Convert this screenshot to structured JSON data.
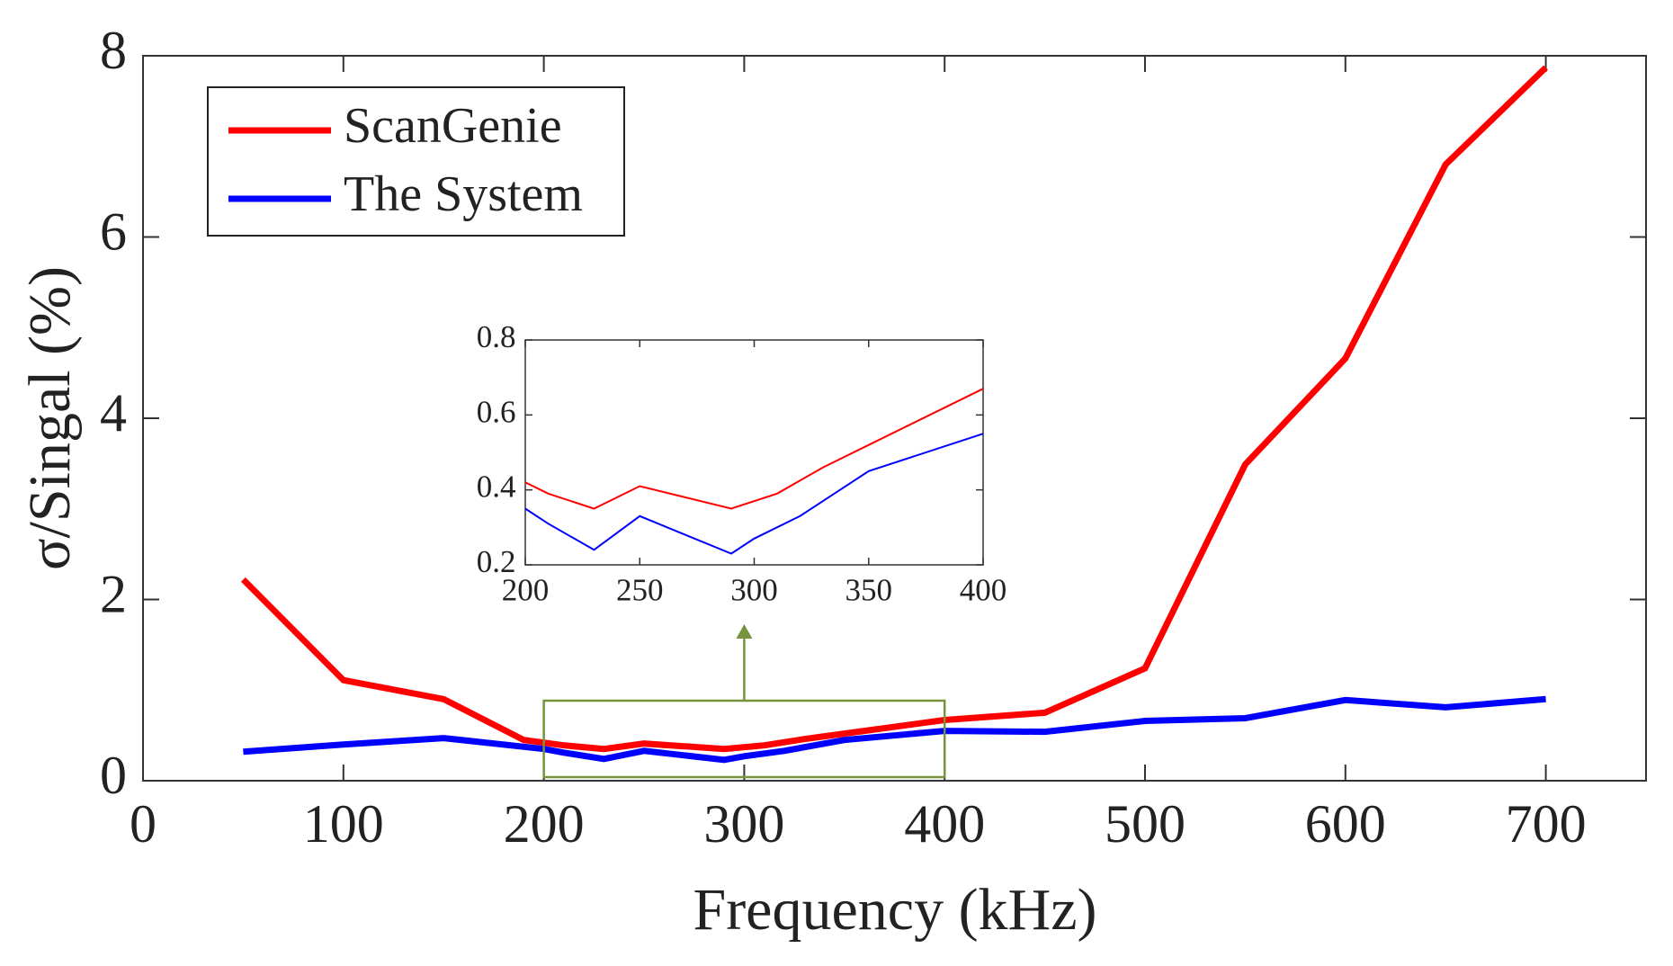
{
  "chart_data": [
    {
      "type": "line",
      "xlabel": "Frequency (kHz)",
      "ylabel": "σ/Singal (%)",
      "xlim": [
        0,
        750
      ],
      "ylim": [
        0,
        8
      ],
      "xticks": [
        0,
        100,
        200,
        300,
        400,
        500,
        600,
        700
      ],
      "yticks": [
        0,
        2,
        4,
        6,
        8
      ],
      "legend": "upper left",
      "series": [
        {
          "name": "ScanGenie",
          "color": "#ff0000",
          "x": [
            50,
            100,
            150,
            190,
            200,
            210,
            230,
            250,
            270,
            290,
            310,
            330,
            350,
            400,
            450,
            500,
            550,
            600,
            650,
            700
          ],
          "values": [
            2.22,
            1.11,
            0.9,
            0.45,
            0.42,
            0.39,
            0.35,
            0.41,
            0.38,
            0.35,
            0.39,
            0.46,
            0.52,
            0.67,
            0.75,
            1.24,
            3.49,
            4.66,
            6.8,
            7.87
          ]
        },
        {
          "name": "The System",
          "color": "#0000ff",
          "x": [
            50,
            100,
            150,
            200,
            210,
            230,
            250,
            270,
            290,
            300,
            320,
            350,
            400,
            450,
            500,
            550,
            600,
            650,
            700
          ],
          "values": [
            0.32,
            0.4,
            0.47,
            0.35,
            0.31,
            0.24,
            0.33,
            0.28,
            0.23,
            0.27,
            0.33,
            0.45,
            0.55,
            0.54,
            0.66,
            0.69,
            0.89,
            0.81,
            0.9
          ]
        }
      ]
    },
    {
      "type": "line",
      "xlim": [
        200,
        400
      ],
      "ylim": [
        0.2,
        0.8
      ],
      "xticks": [
        200,
        250,
        300,
        350,
        400
      ],
      "yticks": [
        0.2,
        0.4,
        0.6,
        0.8
      ],
      "series": [
        {
          "color": "#ff0000",
          "x": [
            200,
            210,
            230,
            250,
            270,
            290,
            310,
            330,
            350,
            400
          ],
          "values": [
            0.42,
            0.39,
            0.35,
            0.41,
            0.38,
            0.35,
            0.39,
            0.46,
            0.52,
            0.67
          ]
        },
        {
          "color": "#0000ff",
          "x": [
            200,
            210,
            230,
            250,
            270,
            290,
            300,
            320,
            350,
            400
          ],
          "values": [
            0.35,
            0.31,
            0.24,
            0.33,
            0.28,
            0.23,
            0.27,
            0.33,
            0.45,
            0.55
          ]
        }
      ]
    }
  ]
}
